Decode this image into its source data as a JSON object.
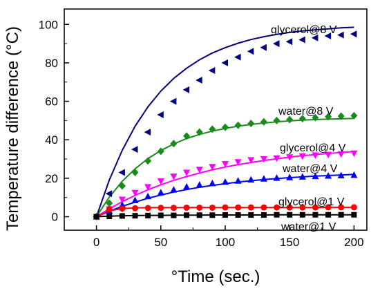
{
  "chart_data": {
    "type": "scatter",
    "xlabel": "°Time (sec.)",
    "ylabel": "Temperature difference (°C)",
    "xlim": [
      -25,
      210
    ],
    "ylim": [
      -7,
      108
    ],
    "xticks": [
      0,
      50,
      100,
      150,
      200
    ],
    "yticks": [
      0,
      20,
      40,
      60,
      80,
      100
    ],
    "grid": false,
    "legend": "inline labels",
    "series": [
      {
        "name": "glycerol@8 V",
        "color": "#000080",
        "marker": "triangle-left",
        "x": [
          0,
          10,
          20,
          30,
          40,
          50,
          60,
          70,
          80,
          90,
          100,
          110,
          120,
          130,
          140,
          150,
          160,
          170,
          180,
          190,
          200
        ],
        "y": [
          0,
          12,
          23,
          35,
          44,
          53,
          60,
          66,
          71,
          76,
          80,
          83,
          86,
          88,
          90,
          91,
          92,
          93,
          94,
          94.5,
          95
        ],
        "fit": [
          0,
          19.1,
          34.5,
          47,
          57.1,
          65.3,
          71.9,
          77.2,
          81.6,
          85.1,
          87.9,
          90.2,
          92.1,
          93.6,
          94.8,
          95.8,
          96.6,
          97.2,
          97.7,
          98.2,
          98.5
        ]
      },
      {
        "name": "water@8 V",
        "color": "#1a8a1a",
        "marker": "diamond",
        "x": [
          0,
          10,
          20,
          30,
          40,
          50,
          60,
          70,
          80,
          90,
          100,
          110,
          120,
          130,
          140,
          150,
          160,
          170,
          180,
          190,
          200
        ],
        "y": [
          0,
          7,
          16,
          23,
          29,
          34,
          38,
          42,
          44,
          45.5,
          46.5,
          47.5,
          48.5,
          49.3,
          50,
          50.5,
          51,
          51.5,
          52,
          52.3,
          52.5
        ],
        "fit": [
          0,
          10.2,
          18.4,
          24.9,
          30.2,
          34.4,
          37.8,
          40.6,
          42.8,
          44.5,
          45.9,
          47.1,
          48,
          48.7,
          49.3,
          49.8,
          50.2,
          50.5,
          50.7,
          50.9,
          51.1
        ]
      },
      {
        "name": "glycerol@4 V",
        "color": "#ff00ff",
        "marker": "triangle-down",
        "x": [
          0,
          10,
          20,
          30,
          40,
          50,
          60,
          70,
          80,
          90,
          100,
          110,
          120,
          130,
          140,
          150,
          160,
          170,
          180,
          190,
          200
        ],
        "y": [
          0,
          4,
          9,
          12.5,
          15.5,
          18.5,
          21,
          23,
          24.5,
          26,
          27.5,
          28.5,
          29.5,
          30,
          30.5,
          31,
          31.5,
          32,
          32.3,
          32.6,
          33
        ],
        "fit": [
          0,
          4.1,
          7.8,
          11.1,
          14,
          16.6,
          18.9,
          20.9,
          22.7,
          24.4,
          25.8,
          27.1,
          28.2,
          29.2,
          30.1,
          31,
          31.7,
          32.3,
          32.9,
          33.4,
          33.9
        ]
      },
      {
        "name": "water@4 V",
        "color": "#0000ff",
        "marker": "triangle-up",
        "x": [
          0,
          10,
          20,
          30,
          40,
          50,
          60,
          70,
          80,
          90,
          100,
          110,
          120,
          130,
          140,
          150,
          160,
          170,
          180,
          190,
          200
        ],
        "y": [
          0,
          3,
          6,
          8.5,
          10.5,
          12.5,
          14,
          15.5,
          16.5,
          17.3,
          18,
          18.6,
          19.2,
          19.7,
          20.1,
          20.4,
          20.7,
          21,
          21.2,
          21.4,
          21.6
        ],
        "fit": [
          0,
          2.8,
          5.4,
          7.6,
          9.6,
          11.3,
          12.8,
          14.1,
          15.3,
          16.3,
          17.2,
          18,
          18.7,
          19.3,
          19.8,
          20.3,
          20.7,
          21.1,
          21.4,
          21.7,
          22
        ]
      },
      {
        "name": "glycerol@1 V",
        "color": "#ff0000",
        "marker": "circle",
        "x": [
          0,
          10,
          20,
          30,
          40,
          50,
          60,
          70,
          80,
          90,
          100,
          110,
          120,
          130,
          140,
          150,
          160,
          170,
          180,
          190,
          200
        ],
        "y": [
          0,
          3.8,
          4.2,
          4.4,
          4.5,
          4.6,
          4.6,
          4.7,
          4.7,
          4.7,
          4.8,
          4.8,
          4.8,
          4.8,
          4.8,
          4.8,
          4.8,
          4.8,
          4.9,
          4.9,
          4.9
        ],
        "fit": [
          0,
          3.1,
          4.2,
          4.6,
          4.7,
          4.7,
          4.7,
          4.8,
          4.8,
          4.8,
          4.8,
          4.8,
          4.8,
          4.8,
          4.8,
          4.8,
          4.8,
          4.8,
          4.9,
          4.9,
          4.9
        ]
      },
      {
        "name": "water@1 V",
        "color": "#000000",
        "marker": "square",
        "x": [
          0,
          10,
          20,
          30,
          40,
          50,
          60,
          70,
          80,
          90,
          100,
          110,
          120,
          130,
          140,
          150,
          160,
          170,
          180,
          190,
          200
        ],
        "y": [
          0,
          0.2,
          0.4,
          0.5,
          0.6,
          0.7,
          0.7,
          0.8,
          0.8,
          0.8,
          0.9,
          0.9,
          0.9,
          0.9,
          1,
          1,
          1,
          1,
          1,
          1,
          1
        ],
        "fit": [
          0,
          0.3,
          0.5,
          0.6,
          0.7,
          0.7,
          0.8,
          0.8,
          0.8,
          0.9,
          0.9,
          0.9,
          0.9,
          0.9,
          1,
          1,
          1,
          1,
          1,
          1,
          1
        ]
      }
    ]
  }
}
